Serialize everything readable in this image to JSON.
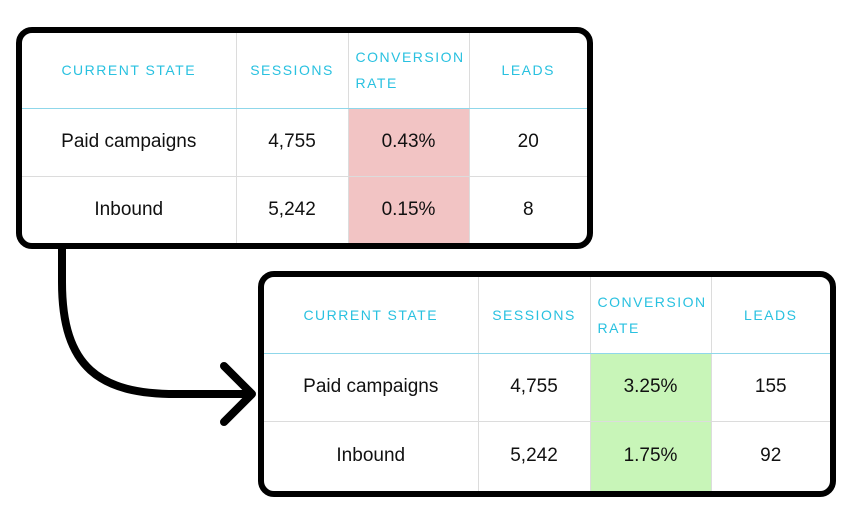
{
  "before_table": {
    "headers": [
      "CURRENT STATE",
      "SESSIONS",
      "CONVERSION RATE",
      "LEADS"
    ],
    "rows": [
      {
        "channel": "Paid campaigns",
        "sessions": "4,755",
        "conversion_rate": "0.43%",
        "leads": "20"
      },
      {
        "channel": "Inbound",
        "sessions": "5,242",
        "conversion_rate": "0.15%",
        "leads": "8"
      }
    ],
    "highlight_color": "#f2c4c4"
  },
  "after_table": {
    "headers": [
      "CURRENT STATE",
      "SESSIONS",
      "CONVERSION RATE",
      "LEADS"
    ],
    "rows": [
      {
        "channel": "Paid campaigns",
        "sessions": "4,755",
        "conversion_rate": "3.25%",
        "leads": "155"
      },
      {
        "channel": "Inbound",
        "sessions": "5,242",
        "conversion_rate": "1.75%",
        "leads": "92"
      }
    ],
    "highlight_color": "#c8f5b8"
  },
  "colors": {
    "header_text": "#29c1e0",
    "border": "#000000",
    "arrow": "#000000"
  },
  "connector": {
    "icon": "curved-arrow-icon"
  }
}
